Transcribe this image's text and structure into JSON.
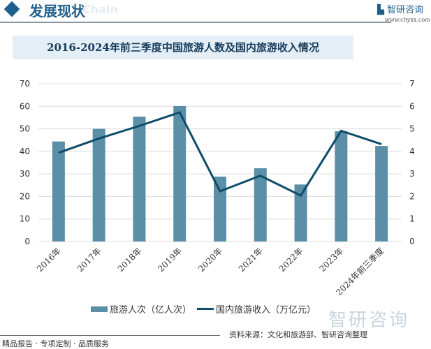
{
  "header": {
    "section_title": "发展现状",
    "watermark_word": "Chain",
    "logo_text": "智研咨询",
    "logo_url": "www.chyxx.com"
  },
  "chart_data": {
    "type": "bar+line",
    "title": "2016-2024年前三季度中国旅游人数及国内旅游收入情况",
    "categories": [
      "2016年",
      "2017年",
      "2018年",
      "2019年",
      "2020年",
      "2021年",
      "2022年",
      "2023年",
      "2024年前三季度"
    ],
    "series": [
      {
        "name": "旅游人次（亿人次）",
        "type": "bar",
        "axis": "left",
        "color": "#5b8fa8",
        "values": [
          44.4,
          50.0,
          55.4,
          60.1,
          28.8,
          32.5,
          25.3,
          48.9,
          42.4
        ]
      },
      {
        "name": "国内旅游收入（万亿元）",
        "type": "line",
        "axis": "right",
        "color": "#0f4c6b",
        "values": [
          3.94,
          4.57,
          5.13,
          5.73,
          2.23,
          2.92,
          2.04,
          4.91,
          4.32
        ]
      }
    ],
    "ylim_left": [
      0,
      70
    ],
    "yticks_left": [
      0,
      10,
      20,
      30,
      40,
      50,
      60,
      70
    ],
    "ylim_right": [
      0,
      7
    ],
    "yticks_right": [
      0,
      1,
      2,
      3,
      4,
      5,
      6,
      7
    ],
    "grid": true,
    "legend": "bottom"
  },
  "footer": {
    "slogan": "精品报告 · 专项定制 · 品质服务",
    "source": "资料来源：文化和旅游部、智研咨询整理",
    "watermark": "智研咨询"
  }
}
